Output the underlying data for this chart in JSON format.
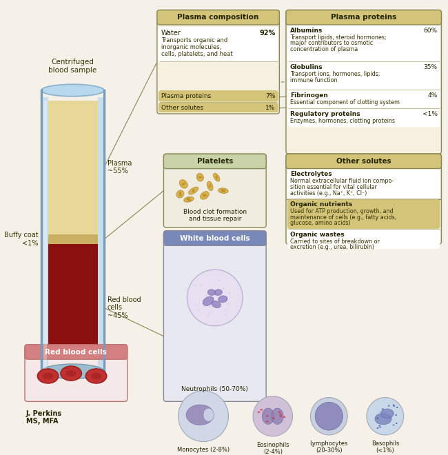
{
  "bg_color": "#f5f0e8",
  "title_bg": "#c8b87a",
  "plasma_comp_title": "Plasma composition",
  "plasma_prot_title": "Plasma proteins",
  "platelets_title": "Platelets",
  "wbc_title": "White blood cells",
  "other_solutes_title": "Other solutes",
  "rbc_title": "Red blood cells",
  "plasma_comp_rows": [
    {
      "label": "Water",
      "pct": "92%",
      "desc": "Transports organic and\ninorganic molecules,\ncells, platelets, and heat",
      "bg": "#ffffff"
    },
    {
      "label": "Plasma proteins",
      "pct": "7%",
      "desc": "",
      "bg": "#d4c47a"
    },
    {
      "label": "Other solutes",
      "pct": "1%",
      "desc": "",
      "bg": "#d4c47a"
    }
  ],
  "plasma_prot_rows": [
    {
      "label": "Albumins",
      "pct": "60%",
      "desc": "Transport lipids, steroid hormones;\nmajor contributors to osmotic\nconcentration of plasma",
      "bg": "#ffffff"
    },
    {
      "label": "Globulins",
      "pct": "35%",
      "desc": "Transport ions, hormones, lipids;\nimmune function",
      "bg": "#ffffff"
    },
    {
      "label": "Fibrinogen",
      "pct": "4%",
      "desc": "Essential component of clotting system",
      "bg": "#ffffff"
    },
    {
      "label": "Regulatory proteins",
      "pct": "<1%",
      "desc": "Enzymes, hormones, clotting proteins",
      "bg": "#ffffff"
    }
  ],
  "other_solutes_rows": [
    {
      "label": "Electrolytes",
      "desc": "Normal extracellular fluid ion compo-\nsition essential for vital cellular\nactivities (e.g., Na⁺, K⁺, Cl⁻)",
      "bg": "#ffffff"
    },
    {
      "label": "Organic nutrients",
      "desc": "Used for ATP production, growth, and\nmaintenance of cells (e.g., fatty acids,\nglucose, amino acids)",
      "bg": "#d4c47a"
    },
    {
      "label": "Organic wastes",
      "desc": "Carried to sites of breakdown or\nexretion (e.g., urea, bilirubin)",
      "bg": "#ffffff"
    }
  ],
  "platelets_desc": "Blood clot formation\nand tissue repair",
  "wbc_cells": [
    {
      "name": "Neutrophils (50-70%)",
      "color": "#d8cce8"
    },
    {
      "name": "Monocytes (2-8%)",
      "color": "#c8d8e8"
    },
    {
      "name": "Eosinophils\n(2-4%)",
      "color": "#c8b8d0"
    },
    {
      "name": "Lymphocytes\n(20-30%)",
      "color": "#c0d0e0"
    },
    {
      "name": "Basophils\n(<1%)",
      "color": "#c8d8e8"
    }
  ],
  "tube_plasma_color": "#e8d898",
  "tube_buffy_color": "#c8b878",
  "tube_rbc_color": "#8b1010",
  "tube_glass_color": "#b8d4e8",
  "author": "J. Perkins\nMS, MFA"
}
